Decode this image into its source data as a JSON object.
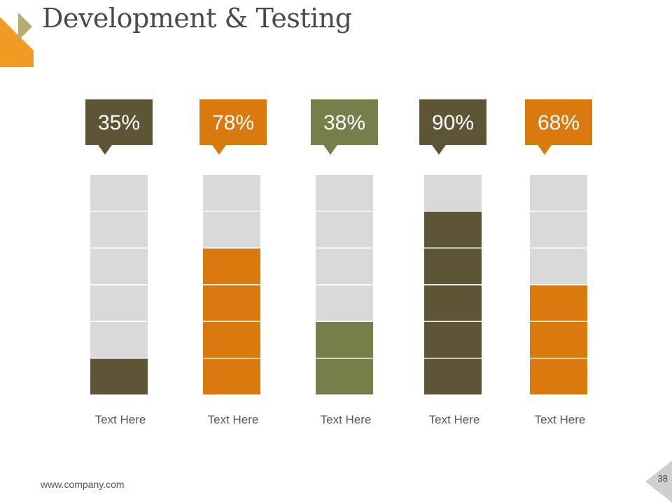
{
  "title": "Development & Testing",
  "footer": {
    "url": "www.company.com",
    "page_number": "38"
  },
  "colors": {
    "empty": "#d9d9d9",
    "dark_olive": "#5d5535",
    "orange": "#d9790e",
    "green": "#767f4a"
  },
  "chart_data": {
    "type": "bar",
    "categories": [
      "Text Here",
      "Text Here",
      "Text Here",
      "Text Here",
      "Text Here"
    ],
    "values": [
      35,
      78,
      38,
      90,
      68
    ],
    "value_labels": [
      "35%",
      "78%",
      "38%",
      "90%",
      "68%"
    ],
    "filled_segments": [
      1,
      4,
      2,
      5,
      3
    ],
    "total_segments": 6,
    "series_colors": [
      "#5d5535",
      "#d9790e",
      "#767f4a",
      "#5d5535",
      "#d9790e"
    ],
    "ylim": [
      0,
      100
    ],
    "unit": "%"
  }
}
